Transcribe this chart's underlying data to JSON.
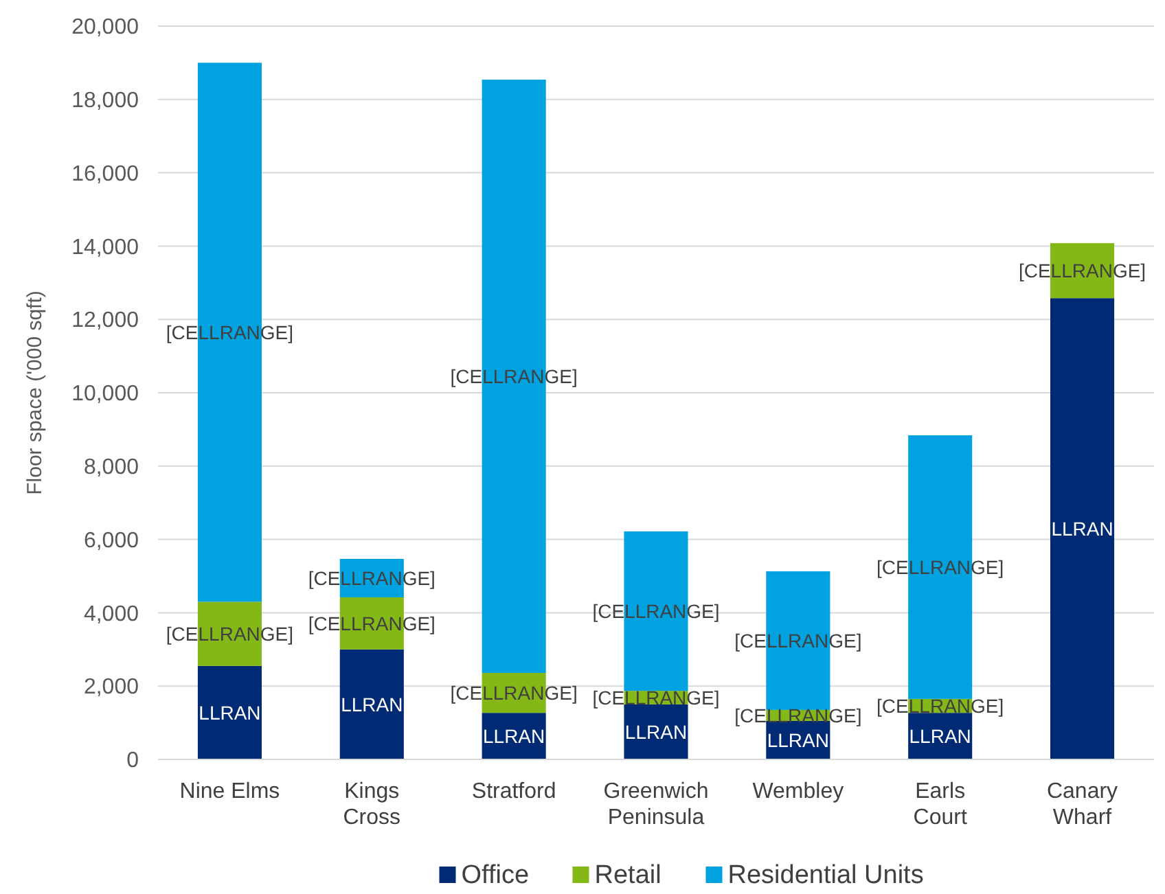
{
  "chart_data": {
    "type": "bar",
    "stacked": true,
    "ylabel": "Floor space ('000 sqft)",
    "categories": [
      "Nine Elms",
      "Kings Cross",
      "Stratford",
      "Greenwich Peninsula",
      "Wembley",
      "Earls Court",
      "Canary Wharf"
    ],
    "series": [
      {
        "name": "Office",
        "color": "#002a74",
        "values": [
          2550,
          3000,
          1270,
          1500,
          1050,
          1270,
          12580
        ],
        "value_labels": [
          "LLRAN",
          "LLRAN",
          "LLRAN",
          "LLRAN",
          "LLRAN",
          "LLRAN",
          "LLRAN"
        ]
      },
      {
        "name": "Retail",
        "color": "#84b817",
        "values": [
          1750,
          1420,
          1090,
          370,
          300,
          380,
          1500
        ],
        "value_labels": [
          "[CELLRANGE]",
          "[CELLRANGE]",
          "[CELLRANGE]",
          "[CELLRANGE]",
          "[CELLRANGE]",
          "[CELLRANGE]",
          "[CELLRANGE]"
        ]
      },
      {
        "name": "Residential Units",
        "color": "#00a3e0",
        "values": [
          14700,
          1050,
          16180,
          4350,
          3780,
          7190,
          null
        ],
        "value_labels": [
          "[CELLRANGE]",
          "[CELLRANGE]",
          "[CELLRANGE]",
          "[CELLRANGE]",
          "[CELLRANGE]",
          "[CELLRANGE]",
          null
        ]
      }
    ],
    "ylim": [
      0,
      20000
    ],
    "yticks": [
      {
        "value": 0,
        "label": "0"
      },
      {
        "value": 2000,
        "label": "2,000"
      },
      {
        "value": 4000,
        "label": "4,000"
      },
      {
        "value": 6000,
        "label": "6,000"
      },
      {
        "value": 8000,
        "label": "8,000"
      },
      {
        "value": 10000,
        "label": "10,000"
      },
      {
        "value": 12000,
        "label": "12,000"
      },
      {
        "value": 14000,
        "label": "14,000"
      },
      {
        "value": 16000,
        "label": "16,000"
      },
      {
        "value": 18000,
        "label": "18,000"
      },
      {
        "value": 20000,
        "label": "20,000"
      }
    ],
    "grid": "y",
    "legend": "bottom"
  }
}
